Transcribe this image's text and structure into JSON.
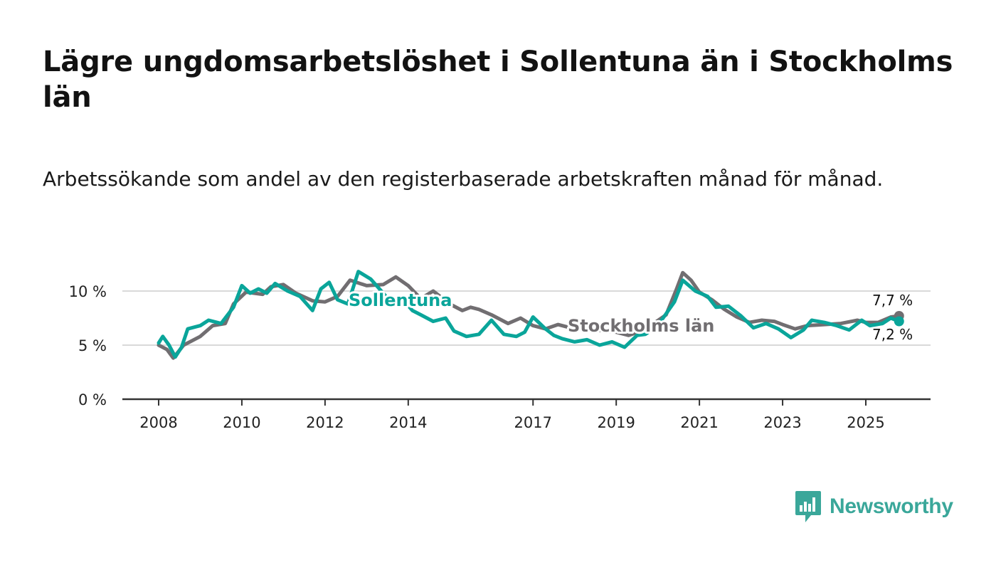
{
  "title": "Lägre ungdomsarbetslöshet i Sollentuna än i Stockholms län",
  "subtitle": "Arbetssökande som andel av den registerbaserade arbetskraften månad för månad.",
  "brand": "Newsworthy",
  "colors": {
    "sollentuna": "#0aa59a",
    "stockholm": "#716e71",
    "grid": "#d9d9d9",
    "axis": "#333333",
    "brand": "#3aa79a"
  },
  "chart_data": {
    "type": "line",
    "ylim": [
      0,
      12
    ],
    "xlim": [
      2007.9,
      2026.4
    ],
    "y_ticks": [
      0,
      5,
      10
    ],
    "y_tick_labels": [
      "0 %",
      "5 %",
      "10 %"
    ],
    "x_ticks": [
      2008,
      2010,
      2012,
      2014,
      2017,
      2019,
      2021,
      2023,
      2025
    ],
    "x_tick_labels": [
      "2008",
      "2010",
      "2012",
      "2014",
      "2017",
      "2019",
      "2021",
      "2023",
      "2025"
    ],
    "series": [
      {
        "name": "Stockholms län",
        "color": "#716e71",
        "end_label": "7,7 %",
        "points": [
          [
            2008.0,
            5.0
          ],
          [
            2008.2,
            4.6
          ],
          [
            2008.35,
            3.8
          ],
          [
            2008.6,
            5.0
          ],
          [
            2009.0,
            5.8
          ],
          [
            2009.3,
            6.8
          ],
          [
            2009.6,
            7.0
          ],
          [
            2009.8,
            8.8
          ],
          [
            2010.1,
            9.9
          ],
          [
            2010.5,
            9.7
          ],
          [
            2010.7,
            10.4
          ],
          [
            2011.0,
            10.6
          ],
          [
            2011.3,
            9.8
          ],
          [
            2011.7,
            9.1
          ],
          [
            2012.0,
            9.0
          ],
          [
            2012.3,
            9.5
          ],
          [
            2012.6,
            11.0
          ],
          [
            2013.0,
            10.5
          ],
          [
            2013.4,
            10.6
          ],
          [
            2013.7,
            11.3
          ],
          [
            2014.0,
            10.5
          ],
          [
            2014.3,
            9.3
          ],
          [
            2014.6,
            10.0
          ],
          [
            2015.0,
            8.8
          ],
          [
            2015.3,
            8.2
          ],
          [
            2015.5,
            8.5
          ],
          [
            2015.7,
            8.3
          ],
          [
            2016.0,
            7.8
          ],
          [
            2016.4,
            7.0
          ],
          [
            2016.7,
            7.5
          ],
          [
            2017.0,
            6.8
          ],
          [
            2017.3,
            6.5
          ],
          [
            2017.6,
            6.9
          ],
          [
            2018.0,
            6.5
          ],
          [
            2018.5,
            6.4
          ],
          [
            2019.0,
            6.2
          ],
          [
            2019.3,
            5.9
          ],
          [
            2019.6,
            6.3
          ],
          [
            2019.9,
            7.0
          ],
          [
            2020.2,
            7.8
          ],
          [
            2020.45,
            10.2
          ],
          [
            2020.6,
            11.7
          ],
          [
            2020.8,
            11.0
          ],
          [
            2021.0,
            9.9
          ],
          [
            2021.3,
            9.2
          ],
          [
            2021.6,
            8.3
          ],
          [
            2021.9,
            7.6
          ],
          [
            2022.2,
            7.1
          ],
          [
            2022.5,
            7.3
          ],
          [
            2022.8,
            7.2
          ],
          [
            2023.0,
            6.9
          ],
          [
            2023.3,
            6.5
          ],
          [
            2023.6,
            6.8
          ],
          [
            2024.0,
            6.9
          ],
          [
            2024.4,
            7.0
          ],
          [
            2024.8,
            7.3
          ],
          [
            2025.0,
            7.1
          ],
          [
            2025.3,
            7.1
          ],
          [
            2025.6,
            7.6
          ],
          [
            2025.8,
            7.7
          ]
        ]
      },
      {
        "name": "Sollentuna",
        "color": "#0aa59a",
        "end_label": "7,2 %",
        "points": [
          [
            2008.0,
            5.2
          ],
          [
            2008.1,
            5.8
          ],
          [
            2008.25,
            5.0
          ],
          [
            2008.4,
            3.9
          ],
          [
            2008.55,
            4.8
          ],
          [
            2008.7,
            6.5
          ],
          [
            2009.0,
            6.8
          ],
          [
            2009.2,
            7.3
          ],
          [
            2009.5,
            7.0
          ],
          [
            2009.8,
            8.5
          ],
          [
            2010.0,
            10.5
          ],
          [
            2010.2,
            9.8
          ],
          [
            2010.4,
            10.2
          ],
          [
            2010.6,
            9.8
          ],
          [
            2010.8,
            10.7
          ],
          [
            2011.1,
            10.0
          ],
          [
            2011.4,
            9.5
          ],
          [
            2011.7,
            8.2
          ],
          [
            2011.9,
            10.2
          ],
          [
            2012.1,
            10.8
          ],
          [
            2012.3,
            9.2
          ],
          [
            2012.55,
            8.8
          ],
          [
            2012.8,
            11.8
          ],
          [
            2013.1,
            11.1
          ],
          [
            2013.4,
            9.8
          ],
          [
            2013.6,
            8.9
          ],
          [
            2013.8,
            9.5
          ],
          [
            2014.1,
            8.2
          ],
          [
            2014.3,
            7.8
          ],
          [
            2014.6,
            7.2
          ],
          [
            2014.9,
            7.5
          ],
          [
            2015.1,
            6.3
          ],
          [
            2015.4,
            5.8
          ],
          [
            2015.7,
            6.0
          ],
          [
            2016.0,
            7.3
          ],
          [
            2016.3,
            6.0
          ],
          [
            2016.6,
            5.8
          ],
          [
            2016.8,
            6.2
          ],
          [
            2017.0,
            7.6
          ],
          [
            2017.3,
            6.5
          ],
          [
            2017.5,
            5.9
          ],
          [
            2017.7,
            5.6
          ],
          [
            2018.0,
            5.3
          ],
          [
            2018.3,
            5.5
          ],
          [
            2018.6,
            5.0
          ],
          [
            2018.9,
            5.3
          ],
          [
            2019.2,
            4.8
          ],
          [
            2019.5,
            5.9
          ],
          [
            2019.7,
            6.0
          ],
          [
            2020.0,
            6.8
          ],
          [
            2020.4,
            9.0
          ],
          [
            2020.6,
            11.0
          ],
          [
            2020.9,
            10.0
          ],
          [
            2021.2,
            9.5
          ],
          [
            2021.4,
            8.5
          ],
          [
            2021.7,
            8.6
          ],
          [
            2022.0,
            7.7
          ],
          [
            2022.3,
            6.6
          ],
          [
            2022.6,
            7.0
          ],
          [
            2022.9,
            6.5
          ],
          [
            2023.2,
            5.7
          ],
          [
            2023.5,
            6.4
          ],
          [
            2023.7,
            7.3
          ],
          [
            2024.0,
            7.1
          ],
          [
            2024.3,
            6.8
          ],
          [
            2024.6,
            6.4
          ],
          [
            2024.9,
            7.3
          ],
          [
            2025.1,
            6.8
          ],
          [
            2025.4,
            7.0
          ],
          [
            2025.6,
            7.5
          ],
          [
            2025.8,
            7.2
          ]
        ]
      }
    ]
  }
}
